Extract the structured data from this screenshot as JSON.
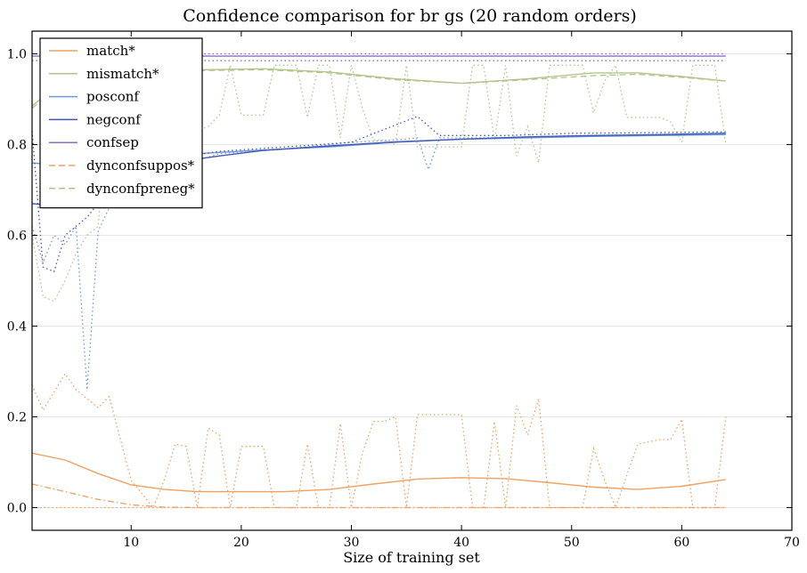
{
  "chart_data": {
    "type": "line",
    "title": "Confidence comparison for br gs (20 random orders)",
    "xlabel": "Size of training set",
    "ylabel": "",
    "xlim": [
      1,
      70
    ],
    "ylim": [
      -0.05,
      1.05
    ],
    "xticks": [
      10,
      20,
      30,
      40,
      50,
      60,
      70
    ],
    "yticks": [
      0.0,
      0.2,
      0.4,
      0.6,
      0.8,
      1.0
    ],
    "grid": "horizontal",
    "legend_position": "top-left",
    "colors": {
      "match": "#f0a160",
      "mismatch": "#b3c58c",
      "posconf": "#6d9bd4",
      "negconf": "#4257b8",
      "confsep": "#8a6fc4",
      "dyncfsuppos": "#f0a160",
      "dyncfpreneg": "#b3c58c"
    },
    "legend": [
      {
        "key": "match",
        "label": "match*",
        "style": "solid"
      },
      {
        "key": "mismatch",
        "label": "mismatch*",
        "style": "solid"
      },
      {
        "key": "posconf",
        "label": "posconf",
        "style": "solid"
      },
      {
        "key": "negconf",
        "label": "negconf",
        "style": "solid"
      },
      {
        "key": "confsep",
        "label": "confsep",
        "style": "solid"
      },
      {
        "key": "dyncfsuppos",
        "label": "dynconfsuppos*",
        "style": "dashed"
      },
      {
        "key": "dyncfpreneg",
        "label": "dynconfpreneg*",
        "style": "dashed"
      }
    ],
    "series": [
      {
        "key": "match",
        "style": "solid",
        "points": [
          [
            1,
            0.12
          ],
          [
            4,
            0.105
          ],
          [
            7,
            0.075
          ],
          [
            10,
            0.05
          ],
          [
            13,
            0.04
          ],
          [
            16,
            0.035
          ],
          [
            20,
            0.035
          ],
          [
            24,
            0.035
          ],
          [
            28,
            0.04
          ],
          [
            32,
            0.052
          ],
          [
            36,
            0.063
          ],
          [
            40,
            0.066
          ],
          [
            44,
            0.064
          ],
          [
            48,
            0.055
          ],
          [
            52,
            0.045
          ],
          [
            56,
            0.04
          ],
          [
            60,
            0.047
          ],
          [
            64,
            0.062
          ]
        ]
      },
      {
        "key": "match",
        "style": "dotted",
        "points": [
          [
            1,
            0.27
          ],
          [
            2,
            0.215
          ],
          [
            3,
            0.255
          ],
          [
            4,
            0.295
          ],
          [
            5,
            0.26
          ],
          [
            6,
            0.24
          ],
          [
            7,
            0.22
          ],
          [
            8,
            0.245
          ],
          [
            10,
            0.06
          ],
          [
            12,
            0.0
          ],
          [
            13,
            0.06
          ],
          [
            14,
            0.14
          ],
          [
            15,
            0.135
          ],
          [
            16,
            0.0
          ],
          [
            17,
            0.175
          ],
          [
            18,
            0.16
          ],
          [
            19,
            0.0
          ],
          [
            20,
            0.135
          ],
          [
            22,
            0.135
          ],
          [
            23,
            0.0
          ],
          [
            25,
            0.0
          ],
          [
            26,
            0.14
          ],
          [
            27,
            0.0
          ],
          [
            28,
            0.0
          ],
          [
            29,
            0.185
          ],
          [
            30,
            0.0
          ],
          [
            31,
            0.12
          ],
          [
            32,
            0.19
          ],
          [
            33,
            0.19
          ],
          [
            34,
            0.2
          ],
          [
            35,
            0.0
          ],
          [
            36,
            0.205
          ],
          [
            40,
            0.205
          ],
          [
            41,
            0.0
          ],
          [
            42,
            0.0
          ],
          [
            43,
            0.19
          ],
          [
            44,
            0.0
          ],
          [
            45,
            0.225
          ],
          [
            46,
            0.16
          ],
          [
            47,
            0.24
          ],
          [
            48,
            0.0
          ],
          [
            51,
            0.0
          ],
          [
            52,
            0.13
          ],
          [
            53,
            0.06
          ],
          [
            54,
            0.0
          ],
          [
            56,
            0.14
          ],
          [
            58,
            0.15
          ],
          [
            59,
            0.15
          ],
          [
            60,
            0.195
          ],
          [
            61,
            0.0
          ],
          [
            63,
            0.0
          ],
          [
            64,
            0.2
          ]
        ]
      },
      {
        "key": "match",
        "style": "dotted",
        "points": [
          [
            1,
            0.0
          ],
          [
            64,
            0.0
          ]
        ]
      },
      {
        "key": "dyncfsuppos",
        "style": "dashdot",
        "points": [
          [
            1,
            0.052
          ],
          [
            4,
            0.035
          ],
          [
            7,
            0.018
          ],
          [
            10,
            0.006
          ],
          [
            13,
            0.001
          ],
          [
            16,
            0.0
          ],
          [
            64,
            0.0
          ]
        ]
      },
      {
        "key": "mismatch",
        "style": "solid",
        "points": [
          [
            1,
            0.885
          ],
          [
            3,
            0.925
          ],
          [
            6,
            0.955
          ],
          [
            10,
            0.963
          ],
          [
            16,
            0.965
          ],
          [
            22,
            0.967
          ],
          [
            28,
            0.96
          ],
          [
            34,
            0.945
          ],
          [
            40,
            0.935
          ],
          [
            46,
            0.945
          ],
          [
            52,
            0.958
          ],
          [
            56,
            0.958
          ],
          [
            60,
            0.95
          ],
          [
            64,
            0.94
          ]
        ]
      },
      {
        "key": "dyncfpreneg",
        "style": "dashed",
        "points": [
          [
            1,
            0.88
          ],
          [
            3,
            0.92
          ],
          [
            6,
            0.95
          ],
          [
            10,
            0.96
          ],
          [
            16,
            0.963
          ],
          [
            22,
            0.965
          ],
          [
            28,
            0.958
          ],
          [
            34,
            0.943
          ],
          [
            40,
            0.935
          ],
          [
            46,
            0.943
          ],
          [
            52,
            0.952
          ],
          [
            56,
            0.955
          ],
          [
            60,
            0.948
          ],
          [
            64,
            0.94
          ]
        ]
      },
      {
        "key": "mismatch",
        "style": "dotted",
        "points": [
          [
            1,
            0.6
          ],
          [
            2,
            0.465
          ],
          [
            3,
            0.455
          ],
          [
            4,
            0.5
          ],
          [
            5,
            0.56
          ],
          [
            6,
            0.6
          ],
          [
            7,
            0.62
          ],
          [
            8,
            0.9
          ],
          [
            10,
            0.95
          ],
          [
            12,
            0.96
          ],
          [
            14,
            0.9
          ],
          [
            15,
            0.97
          ],
          [
            16,
            0.83
          ],
          [
            17,
            0.84
          ],
          [
            18,
            0.865
          ],
          [
            19,
            0.975
          ],
          [
            20,
            0.865
          ],
          [
            22,
            0.865
          ],
          [
            23,
            0.975
          ],
          [
            25,
            0.975
          ],
          [
            26,
            0.86
          ],
          [
            27,
            0.975
          ],
          [
            28,
            0.975
          ],
          [
            29,
            0.815
          ],
          [
            30,
            0.975
          ],
          [
            31,
            0.88
          ],
          [
            32,
            0.81
          ],
          [
            33,
            0.81
          ],
          [
            34,
            0.8
          ],
          [
            35,
            0.975
          ],
          [
            36,
            0.795
          ],
          [
            40,
            0.795
          ],
          [
            41,
            0.975
          ],
          [
            42,
            0.975
          ],
          [
            43,
            0.81
          ],
          [
            44,
            0.975
          ],
          [
            45,
            0.775
          ],
          [
            46,
            0.84
          ],
          [
            47,
            0.76
          ],
          [
            48,
            0.975
          ],
          [
            51,
            0.975
          ],
          [
            52,
            0.87
          ],
          [
            53,
            0.94
          ],
          [
            54,
            0.975
          ],
          [
            55,
            0.86
          ],
          [
            58,
            0.86
          ],
          [
            59,
            0.85
          ],
          [
            60,
            0.805
          ],
          [
            61,
            0.975
          ],
          [
            63,
            0.975
          ],
          [
            64,
            0.8
          ]
        ]
      },
      {
        "key": "posconf",
        "style": "solid",
        "points": [
          [
            1,
            0.76
          ],
          [
            3,
            0.755
          ],
          [
            5,
            0.76
          ],
          [
            8,
            0.77
          ],
          [
            12,
            0.775
          ],
          [
            16,
            0.78
          ],
          [
            22,
            0.788
          ],
          [
            28,
            0.795
          ],
          [
            34,
            0.805
          ],
          [
            40,
            0.812
          ],
          [
            46,
            0.815
          ],
          [
            52,
            0.818
          ],
          [
            58,
            0.82
          ],
          [
            64,
            0.822
          ]
        ]
      },
      {
        "key": "posconf",
        "style": "dotted",
        "points": [
          [
            1,
            0.62
          ],
          [
            2,
            0.54
          ],
          [
            3,
            0.6
          ],
          [
            4,
            0.58
          ],
          [
            5,
            0.62
          ],
          [
            6,
            0.26
          ],
          [
            7,
            0.61
          ],
          [
            8,
            0.66
          ],
          [
            10,
            0.68
          ],
          [
            14,
            0.75
          ],
          [
            18,
            0.78
          ],
          [
            24,
            0.79
          ],
          [
            30,
            0.805
          ],
          [
            34,
            0.81
          ],
          [
            36,
            0.815
          ],
          [
            37,
            0.745
          ],
          [
            38,
            0.815
          ],
          [
            44,
            0.815
          ],
          [
            50,
            0.82
          ],
          [
            56,
            0.822
          ],
          [
            64,
            0.825
          ]
        ]
      },
      {
        "key": "negconf",
        "style": "solid",
        "points": [
          [
            1,
            0.67
          ],
          [
            3,
            0.665
          ],
          [
            5,
            0.668
          ],
          [
            7,
            0.68
          ],
          [
            9,
            0.7
          ],
          [
            12,
            0.74
          ],
          [
            15,
            0.765
          ],
          [
            18,
            0.775
          ],
          [
            22,
            0.787
          ],
          [
            28,
            0.797
          ],
          [
            34,
            0.806
          ],
          [
            40,
            0.812
          ],
          [
            46,
            0.817
          ],
          [
            52,
            0.82
          ],
          [
            58,
            0.822
          ],
          [
            64,
            0.825
          ]
        ]
      },
      {
        "key": "negconf",
        "style": "dotted",
        "points": [
          [
            1,
            0.83
          ],
          [
            2,
            0.53
          ],
          [
            3,
            0.52
          ],
          [
            4,
            0.6
          ],
          [
            5,
            0.62
          ],
          [
            6,
            0.64
          ],
          [
            8,
            0.7
          ],
          [
            10,
            0.73
          ],
          [
            14,
            0.77
          ],
          [
            18,
            0.785
          ],
          [
            24,
            0.795
          ],
          [
            30,
            0.805
          ],
          [
            36,
            0.862
          ],
          [
            38,
            0.82
          ],
          [
            44,
            0.82
          ],
          [
            50,
            0.825
          ],
          [
            56,
            0.826
          ],
          [
            64,
            0.828
          ]
        ]
      },
      {
        "key": "confsep",
        "style": "solid",
        "points": [
          [
            1,
            0.995
          ],
          [
            10,
            0.995
          ],
          [
            20,
            0.995
          ],
          [
            30,
            0.995
          ],
          [
            40,
            0.995
          ],
          [
            50,
            0.995
          ],
          [
            64,
            0.995
          ]
        ]
      },
      {
        "key": "confsep",
        "style": "dotted",
        "points": [
          [
            1,
            1.0
          ],
          [
            64,
            1.0
          ]
        ]
      },
      {
        "key": "confsep",
        "style": "dotted",
        "points": [
          [
            1,
            0.985
          ],
          [
            64,
            0.985
          ]
        ]
      }
    ]
  }
}
